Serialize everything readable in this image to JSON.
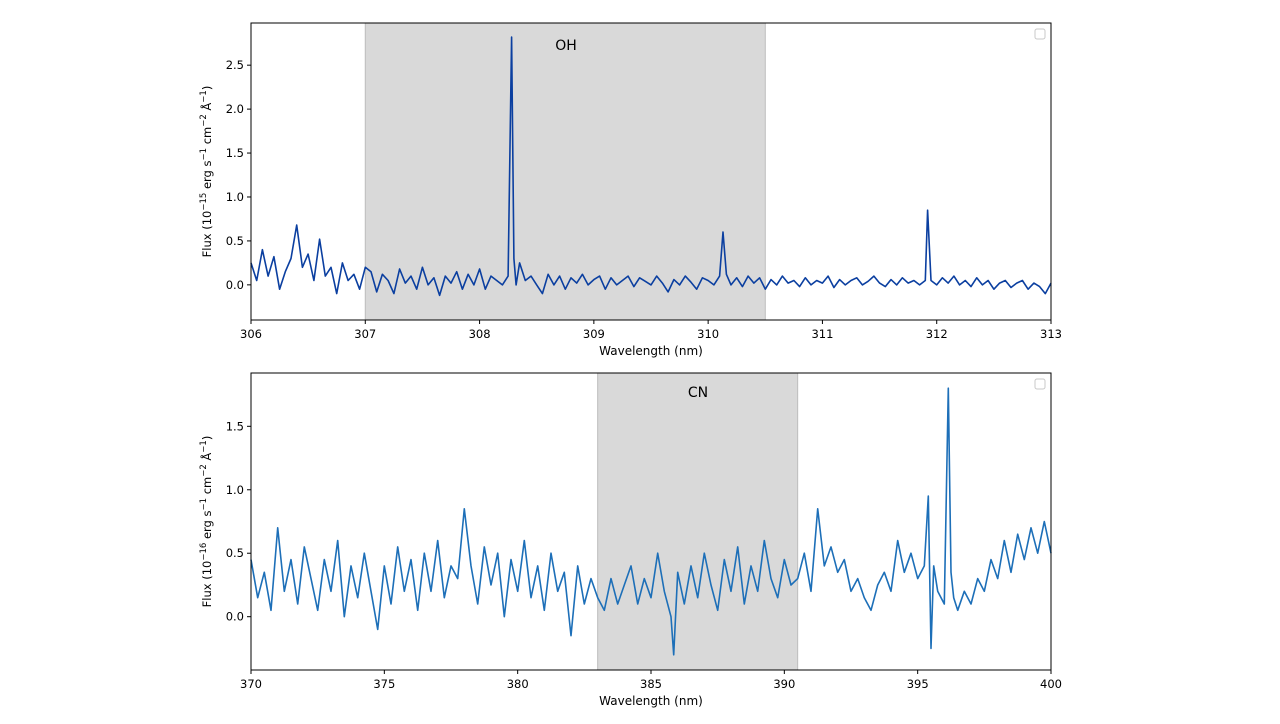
{
  "chart_data": [
    {
      "type": "line",
      "band_label": "OH",
      "band": [
        307.0,
        310.5
      ],
      "xlabel": "Wavelength (nm)",
      "ylabel": {
        "prefix": "Flux (10",
        "exp": "−15",
        "unit": " erg s",
        "s_exp": "−1",
        "cm": " cm",
        "cm_exp": "−2",
        "ang": " Å",
        "ang_exp": "−1",
        "suffix": ")"
      },
      "xlim": [
        306,
        313
      ],
      "ylim": [
        -0.4,
        2.98
      ],
      "xticks": [
        306,
        307,
        308,
        309,
        310,
        311,
        312,
        313
      ],
      "xtick_labels": [
        "306",
        "307",
        "308",
        "309",
        "310",
        "311",
        "312",
        "313"
      ],
      "yticks": [
        0.0,
        0.5,
        1.0,
        1.5,
        2.0,
        2.5
      ],
      "ytick_labels": [
        "0.0",
        "0.5",
        "1.0",
        "1.5",
        "2.0",
        "2.5"
      ],
      "grid": false,
      "legend": "upper right (empty)",
      "series_color": "#0b3fa0",
      "series": [
        {
          "x": [
            306.0,
            306.05,
            306.1,
            306.15,
            306.2,
            306.25,
            306.3,
            306.35,
            306.4,
            306.45,
            306.5,
            306.55,
            306.6,
            306.65,
            306.7,
            306.75,
            306.8,
            306.85,
            306.9,
            306.95,
            307.0,
            307.05,
            307.1,
            307.15,
            307.2,
            307.25,
            307.3,
            307.35,
            307.4,
            307.45,
            307.5,
            307.55,
            307.6,
            307.65,
            307.7,
            307.75,
            307.8,
            307.85,
            307.9,
            307.95,
            308.0,
            308.05,
            308.1,
            308.15,
            308.2,
            308.25,
            308.28,
            308.3,
            308.32,
            308.35,
            308.4,
            308.45,
            308.5,
            308.55,
            308.6,
            308.65,
            308.7,
            308.75,
            308.8,
            308.85,
            308.9,
            308.95,
            309.0,
            309.05,
            309.1,
            309.15,
            309.2,
            309.25,
            309.3,
            309.35,
            309.4,
            309.45,
            309.5,
            309.55,
            309.6,
            309.65,
            309.7,
            309.75,
            309.8,
            309.85,
            309.9,
            309.95,
            310.0,
            310.05,
            310.1,
            310.13,
            310.16,
            310.2,
            310.25,
            310.3,
            310.35,
            310.4,
            310.45,
            310.5,
            310.55,
            310.6,
            310.65,
            310.7,
            310.75,
            310.8,
            310.85,
            310.9,
            310.95,
            311.0,
            311.05,
            311.1,
            311.15,
            311.2,
            311.25,
            311.3,
            311.35,
            311.4,
            311.45,
            311.5,
            311.55,
            311.6,
            311.65,
            311.7,
            311.75,
            311.8,
            311.85,
            311.9,
            311.92,
            311.95,
            312.0,
            312.05,
            312.1,
            312.15,
            312.2,
            312.25,
            312.3,
            312.35,
            312.4,
            312.45,
            312.5,
            312.55,
            312.6,
            312.65,
            312.7,
            312.75,
            312.8,
            312.85,
            312.9,
            312.95,
            313.0
          ],
          "y": [
            0.25,
            0.05,
            0.4,
            0.1,
            0.32,
            -0.05,
            0.15,
            0.3,
            0.68,
            0.2,
            0.35,
            0.05,
            0.52,
            0.1,
            0.2,
            -0.1,
            0.25,
            0.05,
            0.12,
            -0.05,
            0.2,
            0.15,
            -0.08,
            0.12,
            0.05,
            -0.1,
            0.18,
            0.02,
            0.1,
            -0.05,
            0.2,
            0.0,
            0.08,
            -0.12,
            0.1,
            0.02,
            0.15,
            -0.05,
            0.12,
            0.0,
            0.18,
            -0.05,
            0.1,
            0.05,
            0.0,
            0.1,
            2.82,
            0.3,
            0.0,
            0.25,
            0.05,
            0.1,
            0.0,
            -0.1,
            0.12,
            0.0,
            0.1,
            -0.05,
            0.08,
            0.02,
            0.12,
            0.0,
            0.06,
            0.1,
            -0.05,
            0.08,
            0.0,
            0.05,
            0.1,
            -0.02,
            0.08,
            0.04,
            0.0,
            0.1,
            0.02,
            -0.08,
            0.06,
            0.0,
            0.1,
            0.03,
            -0.05,
            0.08,
            0.05,
            0.0,
            0.1,
            0.6,
            0.12,
            0.0,
            0.08,
            -0.02,
            0.1,
            0.02,
            0.08,
            -0.05,
            0.06,
            0.0,
            0.1,
            0.02,
            0.05,
            -0.02,
            0.08,
            0.0,
            0.05,
            0.02,
            0.1,
            -0.03,
            0.06,
            0.0,
            0.05,
            0.08,
            0.0,
            0.04,
            0.1,
            0.02,
            -0.02,
            0.06,
            0.0,
            0.08,
            0.02,
            0.05,
            0.0,
            0.05,
            0.85,
            0.05,
            0.0,
            0.08,
            0.02,
            0.1,
            0.0,
            0.05,
            -0.02,
            0.08,
            0.0,
            0.05,
            -0.05,
            0.02,
            0.05,
            -0.03,
            0.02,
            0.05,
            -0.05,
            0.02,
            -0.02,
            -0.1,
            0.02
          ]
        }
      ]
    },
    {
      "type": "line",
      "band_label": "CN",
      "band": [
        383.0,
        390.5
      ],
      "xlabel": "Wavelength (nm)",
      "ylabel": {
        "prefix": "Flux (10",
        "exp": "−16",
        "unit": " erg s",
        "s_exp": "−1",
        "cm": " cm",
        "cm_exp": "−2",
        "ang": " Å",
        "ang_exp": "−1",
        "suffix": ")"
      },
      "xlim": [
        370,
        400
      ],
      "ylim": [
        -0.42,
        1.92
      ],
      "xticks": [
        370,
        375,
        380,
        385,
        390,
        395,
        400
      ],
      "xtick_labels": [
        "370",
        "375",
        "380",
        "385",
        "390",
        "395",
        "400"
      ],
      "yticks": [
        0.0,
        0.5,
        1.0,
        1.5
      ],
      "ytick_labels": [
        "0.0",
        "0.5",
        "1.0",
        "1.5"
      ],
      "grid": false,
      "legend": "upper right (empty)",
      "series_color": "#1d6fb8",
      "series": [
        {
          "x": [
            370.0,
            370.25,
            370.5,
            370.75,
            371.0,
            371.25,
            371.5,
            371.75,
            372.0,
            372.25,
            372.5,
            372.75,
            373.0,
            373.25,
            373.5,
            373.75,
            374.0,
            374.25,
            374.5,
            374.75,
            375.0,
            375.25,
            375.5,
            375.75,
            376.0,
            376.25,
            376.5,
            376.75,
            377.0,
            377.25,
            377.5,
            377.75,
            378.0,
            378.25,
            378.5,
            378.75,
            379.0,
            379.25,
            379.5,
            379.75,
            380.0,
            380.25,
            380.5,
            380.75,
            381.0,
            381.25,
            381.5,
            381.75,
            382.0,
            382.25,
            382.5,
            382.75,
            383.0,
            383.25,
            383.5,
            383.75,
            384.0,
            384.25,
            384.5,
            384.75,
            385.0,
            385.25,
            385.5,
            385.75,
            385.85,
            386.0,
            386.25,
            386.5,
            386.75,
            387.0,
            387.25,
            387.5,
            387.75,
            388.0,
            388.25,
            388.5,
            388.75,
            389.0,
            389.25,
            389.5,
            389.75,
            390.0,
            390.25,
            390.5,
            390.75,
            391.0,
            391.25,
            391.5,
            391.75,
            392.0,
            392.25,
            392.5,
            392.75,
            393.0,
            393.25,
            393.5,
            393.75,
            394.0,
            394.25,
            394.5,
            394.75,
            395.0,
            395.25,
            395.4,
            395.5,
            395.6,
            395.75,
            396.0,
            396.15,
            396.25,
            396.35,
            396.5,
            396.75,
            397.0,
            397.25,
            397.5,
            397.75,
            398.0,
            398.25,
            398.5,
            398.75,
            399.0,
            399.25,
            399.5,
            399.75,
            400.0
          ],
          "y": [
            0.45,
            0.15,
            0.35,
            0.05,
            0.7,
            0.2,
            0.45,
            0.1,
            0.55,
            0.3,
            0.05,
            0.45,
            0.2,
            0.6,
            0.0,
            0.4,
            0.15,
            0.5,
            0.2,
            -0.1,
            0.4,
            0.1,
            0.55,
            0.2,
            0.45,
            0.05,
            0.5,
            0.2,
            0.6,
            0.15,
            0.4,
            0.3,
            0.85,
            0.4,
            0.1,
            0.55,
            0.25,
            0.5,
            0.0,
            0.45,
            0.2,
            0.6,
            0.15,
            0.4,
            0.05,
            0.5,
            0.2,
            0.35,
            -0.15,
            0.4,
            0.1,
            0.3,
            0.15,
            0.05,
            0.3,
            0.1,
            0.25,
            0.4,
            0.1,
            0.3,
            0.15,
            0.5,
            0.2,
            0.0,
            -0.3,
            0.35,
            0.1,
            0.4,
            0.15,
            0.5,
            0.25,
            0.05,
            0.45,
            0.2,
            0.55,
            0.1,
            0.4,
            0.2,
            0.6,
            0.3,
            0.15,
            0.45,
            0.25,
            0.3,
            0.5,
            0.2,
            0.85,
            0.4,
            0.55,
            0.35,
            0.45,
            0.2,
            0.3,
            0.15,
            0.05,
            0.25,
            0.35,
            0.2,
            0.6,
            0.35,
            0.5,
            0.3,
            0.4,
            0.95,
            -0.25,
            0.4,
            0.2,
            0.1,
            1.8,
            0.35,
            0.15,
            0.05,
            0.2,
            0.1,
            0.3,
            0.2,
            0.45,
            0.3,
            0.6,
            0.35,
            0.65,
            0.45,
            0.7,
            0.5,
            0.75,
            0.5
          ]
        }
      ]
    }
  ]
}
